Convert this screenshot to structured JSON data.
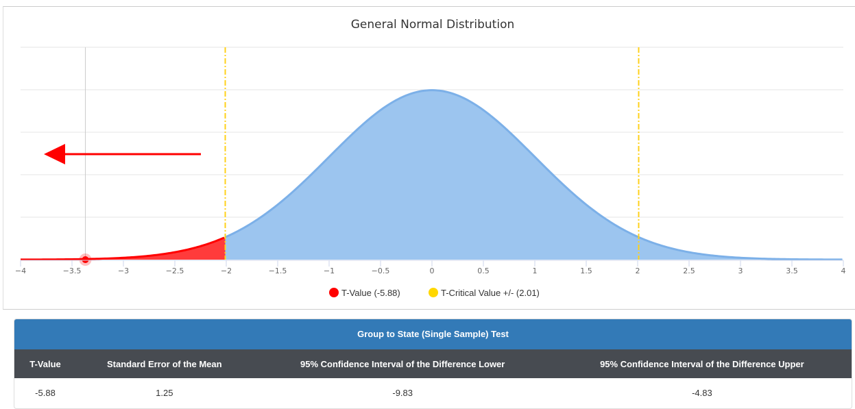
{
  "chart_data": {
    "type": "area",
    "title": "General Normal Distribution",
    "xlim": [
      -4,
      4
    ],
    "ylim": [
      0,
      0.5
    ],
    "xticks": [
      "-4",
      "-3.5",
      "-3",
      "-2.5",
      "-2",
      "-1.5",
      "-1",
      "-0.5",
      "0",
      "0.5",
      "1",
      "1.5",
      "2",
      "2.5",
      "3",
      "3.5",
      "4"
    ],
    "grid": true,
    "curve": "standard normal density",
    "critical_value": 2.01,
    "t_value_marker_x": -3.37,
    "shaded_region": [
      -4,
      -2.01
    ],
    "arrow_direction": "left",
    "legend": [
      {
        "label": "T-Value (-5.88)",
        "color": "#ff0000"
      },
      {
        "label": "T-Critical Value +/- (2.01)",
        "color": "#ffd700"
      }
    ],
    "legend_placement": "bottom",
    "colors": {
      "curve_fill": "#9cc5ef",
      "curve_line": "#7cb0e8",
      "tail_fill": "#ff3b3b",
      "critical_line": "#ffd11a"
    }
  },
  "results": {
    "title": "Group to State (Single Sample) Test",
    "headers": [
      "T-Value",
      "Standard Error of the Mean",
      "95% Confidence Interval of the Difference Lower",
      "95% Confidence Interval of the Difference Upper"
    ],
    "rows": [
      [
        "-5.88",
        "1.25",
        "-9.83",
        "-4.83"
      ]
    ]
  }
}
